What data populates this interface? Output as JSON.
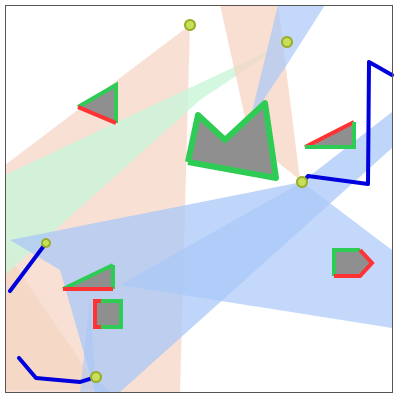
{
  "scene": {
    "background": "#ffffff",
    "frame_color": "#555555"
  },
  "lights": [
    {
      "id": "light-1",
      "color": "#b8cc2a",
      "fill": "#f6d7c6"
    },
    {
      "id": "light-2",
      "color": "#b8cc2a",
      "fill": "#c9f5d8"
    },
    {
      "id": "light-3",
      "color": "#b8cc2a",
      "fill": "#a9c8f8"
    },
    {
      "id": "light-4",
      "color": "#b8cc2a",
      "fill": "#f6d7c6"
    },
    {
      "id": "light-5",
      "color": "#b8cc2a",
      "fill": "#a9c8f8"
    }
  ],
  "obstacles": {
    "fill": "#8f8f8f",
    "lit_edge_color": "#2ecc55",
    "shadow_edge_color": "#ff3333",
    "count": 6
  },
  "walls": {
    "color": "#0000dd",
    "count": 3
  }
}
